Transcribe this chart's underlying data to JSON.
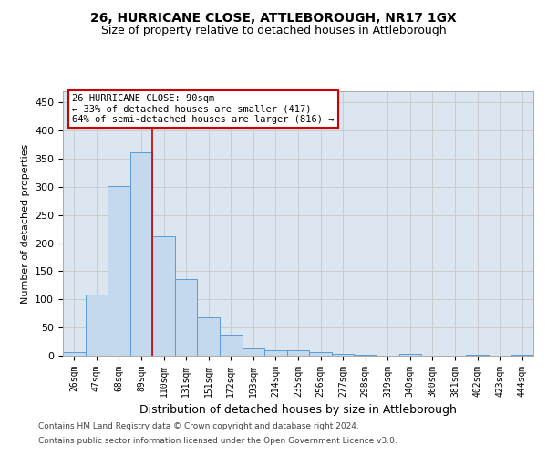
{
  "title1": "26, HURRICANE CLOSE, ATTLEBOROUGH, NR17 1GX",
  "title2": "Size of property relative to detached houses in Attleborough",
  "xlabel": "Distribution of detached houses by size in Attleborough",
  "ylabel": "Number of detached properties",
  "categories": [
    "26sqm",
    "47sqm",
    "68sqm",
    "89sqm",
    "110sqm",
    "131sqm",
    "151sqm",
    "172sqm",
    "193sqm",
    "214sqm",
    "235sqm",
    "256sqm",
    "277sqm",
    "298sqm",
    "319sqm",
    "340sqm",
    "360sqm",
    "381sqm",
    "402sqm",
    "423sqm",
    "444sqm"
  ],
  "values": [
    7,
    108,
    301,
    362,
    213,
    136,
    68,
    38,
    13,
    10,
    9,
    7,
    4,
    2,
    0,
    3,
    0,
    0,
    2,
    0,
    2
  ],
  "bar_color": "#c5d9ee",
  "bar_edge_color": "#5b9bd5",
  "bar_linewidth": 0.7,
  "redline_x": 3.5,
  "annotation_line1": "26 HURRICANE CLOSE: 90sqm",
  "annotation_line2": "← 33% of detached houses are smaller (417)",
  "annotation_line3": "64% of semi-detached houses are larger (816) →",
  "annotation_box_facecolor": "#ffffff",
  "annotation_box_edgecolor": "#cc0000",
  "redline_color": "#cc0000",
  "redline_linewidth": 1.2,
  "grid_color": "#c8c8c8",
  "ylim": [
    0,
    470
  ],
  "yticks": [
    0,
    50,
    100,
    150,
    200,
    250,
    300,
    350,
    400,
    450
  ],
  "bg_color": "#dce6f0",
  "title1_fontsize": 10,
  "title2_fontsize": 9,
  "ylabel_fontsize": 8,
  "xlabel_fontsize": 9,
  "tick_fontsize": 7,
  "footer1": "Contains HM Land Registry data © Crown copyright and database right 2024.",
  "footer2": "Contains public sector information licensed under the Open Government Licence v3.0.",
  "footer_fontsize": 6.5
}
